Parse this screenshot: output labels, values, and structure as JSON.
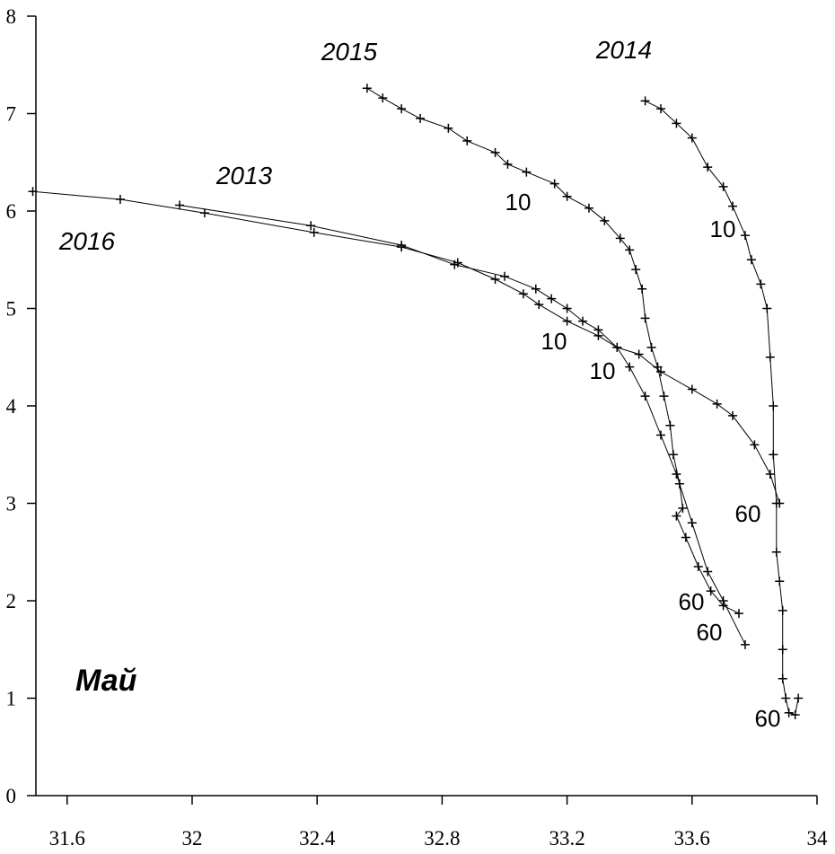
{
  "chart_data": {
    "type": "line",
    "title": "Май",
    "marker": "+",
    "xlim": [
      31.5,
      34
    ],
    "xticks": [
      31.6,
      32,
      32.4,
      32.8,
      33.2,
      33.6,
      34
    ],
    "ylim": [
      0,
      8
    ],
    "yticks": [
      0,
      1,
      2,
      3,
      4,
      5,
      6,
      7,
      8
    ],
    "annotations": [
      "10",
      "10",
      "10",
      "10",
      "60",
      "60",
      "60",
      "60"
    ],
    "series": [
      {
        "name": "2015",
        "color": "#000000",
        "x": [
          32.56,
          32.61,
          32.67,
          32.73,
          32.82,
          32.88,
          32.97,
          33.01,
          33.07,
          33.16,
          33.2,
          33.27,
          33.32,
          33.37,
          33.4,
          33.42,
          33.44,
          33.45,
          33.47,
          33.49,
          33.51,
          33.53,
          33.54,
          33.56,
          33.57,
          33.55,
          33.58,
          33.62,
          33.66,
          33.7,
          33.75
        ],
        "values": [
          7.26,
          7.16,
          7.05,
          6.95,
          6.85,
          6.72,
          6.6,
          6.48,
          6.4,
          6.28,
          6.15,
          6.03,
          5.9,
          5.72,
          5.6,
          5.4,
          5.2,
          4.9,
          4.6,
          4.4,
          4.1,
          3.8,
          3.5,
          3.2,
          2.95,
          2.87,
          2.65,
          2.35,
          2.1,
          1.95,
          1.87
        ]
      },
      {
        "name": "2014",
        "color": "#000000",
        "x": [
          33.45,
          33.5,
          33.55,
          33.6,
          33.65,
          33.7,
          33.73,
          33.77,
          33.79,
          33.82,
          33.84,
          33.85,
          33.86,
          33.86,
          33.87,
          33.87,
          33.88,
          33.89,
          33.89,
          33.89,
          33.9,
          33.91,
          33.93,
          33.94
        ],
        "values": [
          7.13,
          7.05,
          6.9,
          6.75,
          6.45,
          6.25,
          6.05,
          5.75,
          5.5,
          5.25,
          5.0,
          4.5,
          4.0,
          3.5,
          3.0,
          2.5,
          2.2,
          1.9,
          1.5,
          1.2,
          1.0,
          0.85,
          0.83,
          1.0
        ]
      },
      {
        "name": "2013",
        "color": "#000000",
        "x": [
          31.96,
          32.38,
          32.67,
          32.84,
          33.0,
          33.1,
          33.15,
          33.2,
          33.25,
          33.3,
          33.36,
          33.4,
          33.45,
          33.5,
          33.55,
          33.6,
          33.65,
          33.7,
          33.77
        ],
        "values": [
          6.06,
          5.85,
          5.65,
          5.45,
          5.33,
          5.2,
          5.1,
          5.0,
          4.87,
          4.78,
          4.6,
          4.4,
          4.1,
          3.7,
          3.3,
          2.8,
          2.3,
          2.0,
          1.55
        ]
      },
      {
        "name": "2016",
        "color": "#000000",
        "x": [
          31.49,
          31.77,
          32.04,
          32.39,
          32.67,
          32.85,
          32.97,
          33.06,
          33.11,
          33.2,
          33.3,
          33.36,
          33.43,
          33.5,
          33.6,
          33.68,
          33.73,
          33.8,
          33.85,
          33.88
        ],
        "values": [
          6.2,
          6.12,
          5.98,
          5.78,
          5.63,
          5.47,
          5.3,
          5.15,
          5.04,
          4.87,
          4.72,
          4.6,
          4.53,
          4.35,
          4.17,
          4.02,
          3.9,
          3.6,
          3.3,
          3.0
        ]
      }
    ]
  }
}
